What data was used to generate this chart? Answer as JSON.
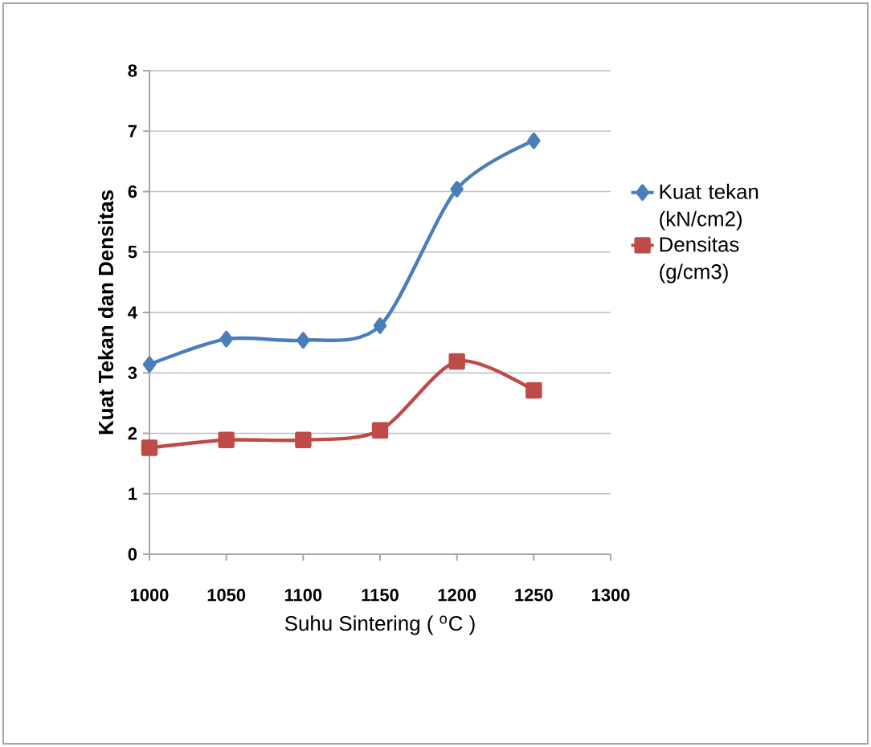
{
  "chart_data": {
    "type": "line",
    "xlabel": "Suhu Sintering ( $^{o}$C )",
    "ylabel": "Kuat Tekan dan Densitas",
    "x": [
      1000,
      1050,
      1100,
      1150,
      1200,
      1250
    ],
    "series": [
      {
        "name": "Kuat tekan (kN/cm2)",
        "color": "#4a7ebb",
        "marker": "diamond",
        "values": [
          3.14,
          3.56,
          3.54,
          3.78,
          6.04,
          6.84
        ]
      },
      {
        "name": "Densitas (g/cm3)",
        "color": "#be4b48",
        "marker": "square",
        "values": [
          1.76,
          1.89,
          1.89,
          2.05,
          3.19,
          2.71
        ]
      }
    ],
    "xlim": [
      1000,
      1300
    ],
    "xticks": [
      1000,
      1050,
      1100,
      1150,
      1200,
      1250,
      1300
    ],
    "ylim": [
      0,
      8
    ],
    "yticks": [
      0,
      1,
      2,
      3,
      4,
      5,
      6,
      7,
      8
    ],
    "grid": "y",
    "legend": "right"
  }
}
